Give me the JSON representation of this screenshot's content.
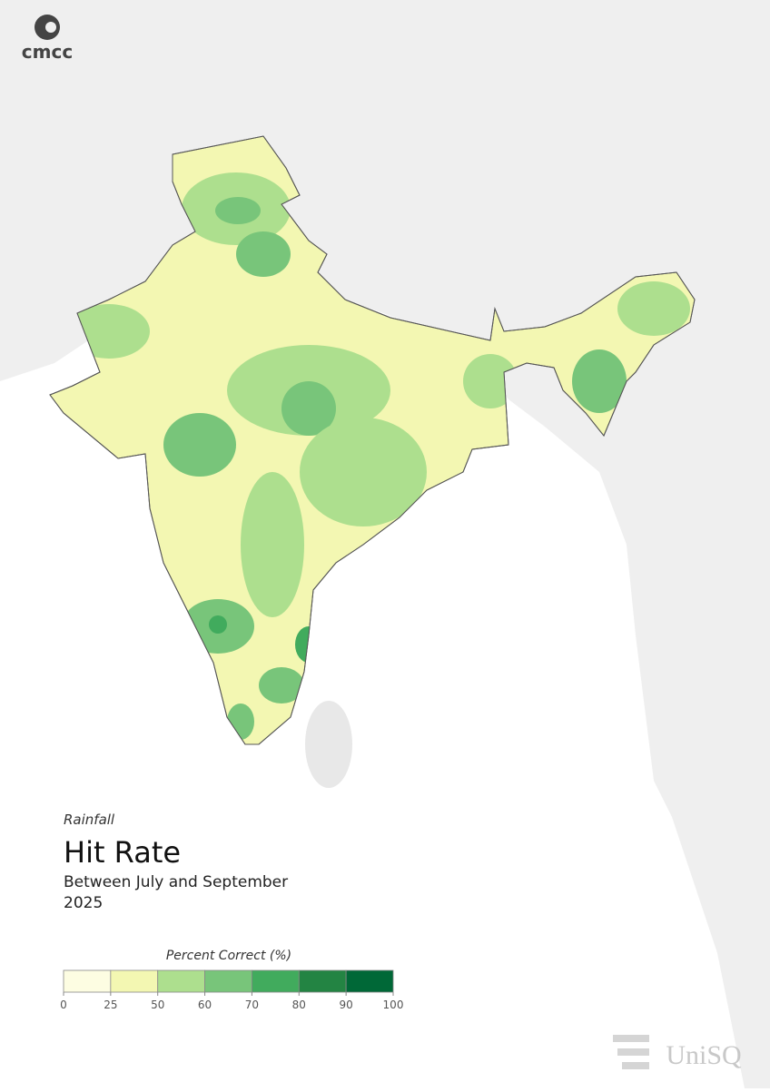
{
  "logo": "cmcc",
  "header": {
    "variable": "Rainfall",
    "title": "Hit Rate",
    "period": "Between July and September",
    "year": "2025"
  },
  "legend": {
    "title": "Percent Correct (%)",
    "ticks": [
      0,
      25,
      50,
      60,
      70,
      80,
      90,
      100
    ],
    "colors": [
      "#fdfde2",
      "#f3f7b2",
      "#addf8e",
      "#78c57a",
      "#41ab5d",
      "#238443",
      "#006837"
    ]
  },
  "footer_logo": "UniSQ"
}
